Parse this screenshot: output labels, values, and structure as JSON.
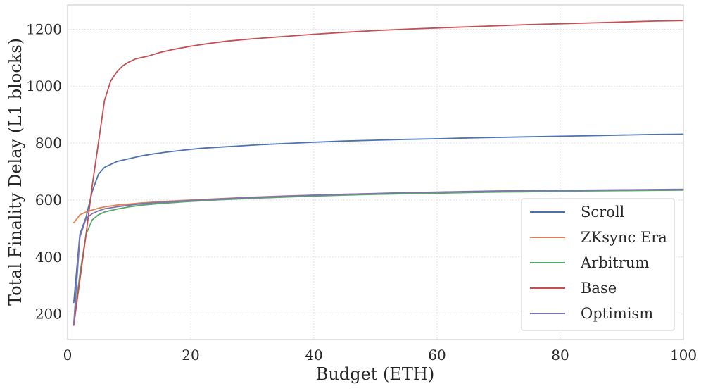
{
  "chart_data": {
    "type": "line",
    "title": "",
    "xlabel": "Budget (ETH)",
    "ylabel": "Total Finality Delay (L1 blocks)",
    "xlim": [
      0,
      100
    ],
    "ylim": [
      110,
      1285
    ],
    "xticks": [
      0,
      20,
      40,
      60,
      80,
      100
    ],
    "yticks": [
      200,
      400,
      600,
      800,
      1000,
      1200
    ],
    "grid": true,
    "legend_position": "bottom-right",
    "series": [
      {
        "name": "Scroll",
        "color": "#4c72b0",
        "points": [
          [
            1,
            240
          ],
          [
            2,
            480
          ],
          [
            3,
            540
          ],
          [
            4,
            630
          ],
          [
            5,
            690
          ],
          [
            6,
            715
          ],
          [
            7,
            725
          ],
          [
            8,
            735
          ],
          [
            10,
            745
          ],
          [
            12,
            755
          ],
          [
            14,
            762
          ],
          [
            16,
            768
          ],
          [
            18,
            773
          ],
          [
            20,
            778
          ],
          [
            22,
            782
          ],
          [
            25,
            786
          ],
          [
            28,
            790
          ],
          [
            31,
            794
          ],
          [
            35,
            798
          ],
          [
            40,
            803
          ],
          [
            45,
            807
          ],
          [
            50,
            810
          ],
          [
            55,
            813
          ],
          [
            60,
            815
          ],
          [
            65,
            818
          ],
          [
            70,
            820
          ],
          [
            75,
            822
          ],
          [
            80,
            824
          ],
          [
            85,
            826
          ],
          [
            90,
            828
          ],
          [
            95,
            830
          ],
          [
            100,
            831
          ]
        ]
      },
      {
        "name": "ZKsync Era",
        "color": "#dd8452",
        "points": [
          [
            1,
            520
          ],
          [
            2,
            548
          ],
          [
            3,
            558
          ],
          [
            4,
            565
          ],
          [
            5,
            571
          ],
          [
            6,
            576
          ],
          [
            8,
            582
          ],
          [
            10,
            586
          ],
          [
            12,
            590
          ],
          [
            15,
            594
          ],
          [
            20,
            600
          ],
          [
            25,
            605
          ],
          [
            30,
            610
          ],
          [
            35,
            614
          ],
          [
            40,
            617
          ],
          [
            45,
            620
          ],
          [
            50,
            622
          ],
          [
            55,
            624
          ],
          [
            60,
            626
          ],
          [
            65,
            628
          ],
          [
            70,
            630
          ],
          [
            75,
            631
          ],
          [
            80,
            632
          ],
          [
            85,
            633
          ],
          [
            90,
            634
          ],
          [
            95,
            635
          ],
          [
            100,
            636
          ]
        ]
      },
      {
        "name": "Arbitrum",
        "color": "#55a868",
        "points": [
          [
            1,
            170
          ],
          [
            2,
            340
          ],
          [
            3,
            480
          ],
          [
            4,
            530
          ],
          [
            5,
            548
          ],
          [
            6,
            558
          ],
          [
            8,
            568
          ],
          [
            10,
            576
          ],
          [
            12,
            582
          ],
          [
            15,
            588
          ],
          [
            20,
            595
          ],
          [
            25,
            601
          ],
          [
            30,
            606
          ],
          [
            35,
            610
          ],
          [
            40,
            614
          ],
          [
            45,
            617
          ],
          [
            50,
            620
          ],
          [
            55,
            622
          ],
          [
            60,
            624
          ],
          [
            65,
            626
          ],
          [
            70,
            628
          ],
          [
            75,
            629
          ],
          [
            80,
            631
          ],
          [
            85,
            632
          ],
          [
            90,
            633
          ],
          [
            95,
            634
          ],
          [
            100,
            635
          ]
        ]
      },
      {
        "name": "Base",
        "color": "#c44e52",
        "points": [
          [
            1,
            160
          ],
          [
            2,
            320
          ],
          [
            3,
            480
          ],
          [
            4,
            650
          ],
          [
            5,
            800
          ],
          [
            6,
            950
          ],
          [
            7,
            1018
          ],
          [
            8,
            1050
          ],
          [
            9,
            1072
          ],
          [
            10,
            1085
          ],
          [
            11,
            1095
          ],
          [
            13,
            1105
          ],
          [
            15,
            1118
          ],
          [
            17,
            1128
          ],
          [
            20,
            1140
          ],
          [
            23,
            1150
          ],
          [
            26,
            1158
          ],
          [
            30,
            1166
          ],
          [
            35,
            1174
          ],
          [
            40,
            1182
          ],
          [
            45,
            1189
          ],
          [
            50,
            1195
          ],
          [
            55,
            1200
          ],
          [
            60,
            1204
          ],
          [
            65,
            1208
          ],
          [
            70,
            1212
          ],
          [
            75,
            1216
          ],
          [
            80,
            1219
          ],
          [
            85,
            1222
          ],
          [
            90,
            1225
          ],
          [
            95,
            1228
          ],
          [
            100,
            1230
          ]
        ]
      },
      {
        "name": "Optimism",
        "color": "#8172b3",
        "points": [
          [
            1,
            165
          ],
          [
            2,
            470
          ],
          [
            3,
            535
          ],
          [
            4,
            552
          ],
          [
            5,
            562
          ],
          [
            6,
            569
          ],
          [
            8,
            576
          ],
          [
            10,
            582
          ],
          [
            12,
            587
          ],
          [
            15,
            592
          ],
          [
            20,
            598
          ],
          [
            25,
            604
          ],
          [
            30,
            609
          ],
          [
            35,
            613
          ],
          [
            40,
            617
          ],
          [
            45,
            620
          ],
          [
            50,
            623
          ],
          [
            55,
            626
          ],
          [
            60,
            628
          ],
          [
            65,
            630
          ],
          [
            70,
            632
          ],
          [
            75,
            633
          ],
          [
            80,
            634
          ],
          [
            85,
            635
          ],
          [
            90,
            636
          ],
          [
            95,
            637
          ],
          [
            100,
            638
          ]
        ]
      }
    ]
  }
}
